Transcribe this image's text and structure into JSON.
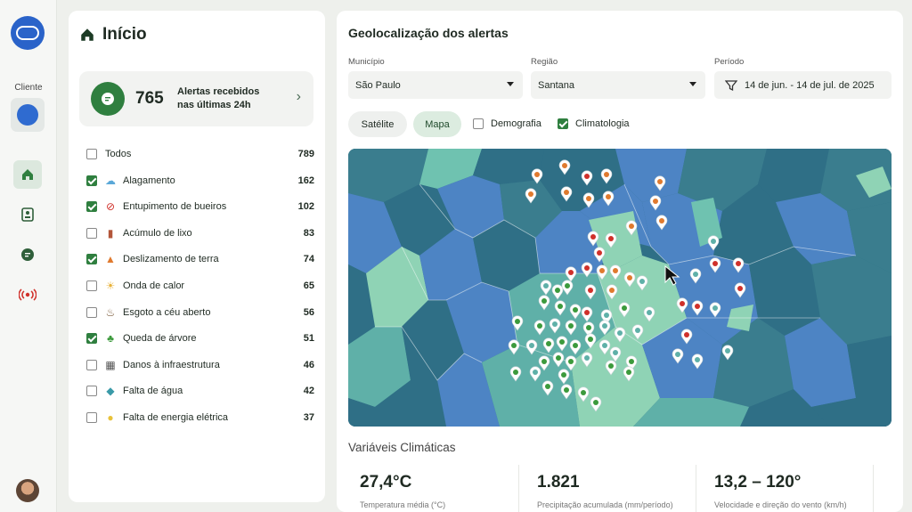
{
  "sidebar": {
    "client_label": "Cliente",
    "nav": [
      "home-icon",
      "contact-card-icon",
      "document-icon",
      "broadcast-icon"
    ]
  },
  "home": {
    "title": "Início",
    "summary": {
      "count": "765",
      "text": "Alertas recebidos nas últimas 24h"
    },
    "filters": [
      {
        "label": "Todos",
        "count": "789",
        "checked": false,
        "icon": ""
      },
      {
        "label": "Alagamento",
        "count": "162",
        "checked": true,
        "icon": "rain-cloud-icon"
      },
      {
        "label": "Entupimento de bueiros",
        "count": "102",
        "checked": true,
        "icon": "blocked-drain-icon"
      },
      {
        "label": "Acúmulo de lixo",
        "count": "83",
        "checked": false,
        "icon": "trash-icon"
      },
      {
        "label": "Deslizamento de terra",
        "count": "74",
        "checked": true,
        "icon": "landslide-icon"
      },
      {
        "label": "Onda de calor",
        "count": "65",
        "checked": false,
        "icon": "sun-icon"
      },
      {
        "label": "Esgoto a céu aberto",
        "count": "56",
        "checked": false,
        "icon": "sewage-icon"
      },
      {
        "label": "Queda de árvore",
        "count": "51",
        "checked": true,
        "icon": "tree-icon"
      },
      {
        "label": "Danos à infraestrutura",
        "count": "46",
        "checked": false,
        "icon": "building-icon"
      },
      {
        "label": "Falta de água",
        "count": "42",
        "checked": false,
        "icon": "no-water-icon"
      },
      {
        "label": "Falta de energia elétrica",
        "count": "37",
        "checked": false,
        "icon": "power-outage-icon"
      }
    ]
  },
  "geo": {
    "title": "Geolocalização dos alertas",
    "municipio": {
      "label": "Município",
      "value": "São Paulo"
    },
    "regiao": {
      "label": "Região",
      "value": "Santana"
    },
    "periodo": {
      "label": "Período",
      "value": "14 de jun. - 14 de jul. de 2025"
    },
    "view": {
      "satellite": "Satélite",
      "map": "Mapa",
      "active": "map"
    },
    "layers": [
      {
        "label": "Demografia",
        "checked": false
      },
      {
        "label": "Climatologia",
        "checked": true
      }
    ]
  },
  "climate": {
    "title": "Variáveis Climáticas",
    "stats": [
      {
        "value": "27,4°C",
        "desc": "Temperatura média (°C)"
      },
      {
        "value": "1.821",
        "desc": "Precipitação acumulada (mm/período)"
      },
      {
        "value": "13,2 – 120°",
        "desc": "Velocidade e direção do vento (km/h)"
      }
    ]
  },
  "colors": {
    "accent": "#2f7f3f",
    "map_dark": "#2f6f86",
    "map_blue": "#4d84c4",
    "map_mint": "#8fd3b5",
    "map_teal": "#5fb0a8"
  }
}
